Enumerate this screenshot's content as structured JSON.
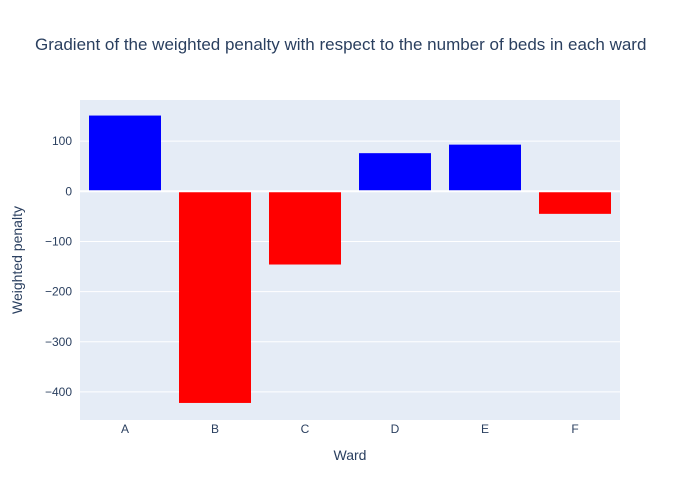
{
  "chart_data": {
    "type": "bar",
    "title": "Gradient of the weighted penalty with respect to the number of beds in each ward",
    "xlabel": "Ward",
    "ylabel": "Weighted penalty",
    "categories": [
      "A",
      "B",
      "C",
      "D",
      "E",
      "F"
    ],
    "values": [
      151,
      -422,
      -146,
      76,
      93,
      -45
    ],
    "ylim": [
      -456,
      182
    ],
    "yticks": [
      100,
      0,
      -100,
      -200,
      -300,
      -400
    ],
    "ytick_labels": [
      "100",
      "0",
      "−100",
      "−200",
      "−300",
      "−400"
    ],
    "grid": true,
    "colors": {
      "positive": "#0000ff",
      "negative": "#ff0000",
      "plot_background": "#e5ecf6",
      "grid": "#ffffff",
      "text": "#2a3f5f"
    }
  }
}
